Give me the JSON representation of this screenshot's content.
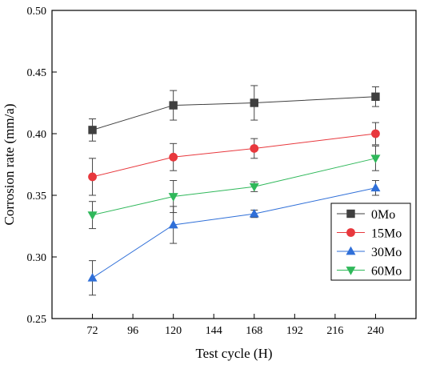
{
  "chart_data": {
    "type": "line",
    "xlabel": "Test cycle (H)",
    "ylabel": "Corrosion rate (mm/a)",
    "xlim": [
      48,
      264
    ],
    "ylim": [
      0.25,
      0.5
    ],
    "xticks": [
      72,
      96,
      120,
      144,
      168,
      192,
      216,
      240
    ],
    "xtick_labels": [
      "72",
      "96",
      "120",
      "144",
      "168",
      "192",
      "216",
      "240"
    ],
    "yticks": [
      0.25,
      0.3,
      0.35,
      0.4,
      0.45,
      0.5
    ],
    "ytick_labels": [
      "0.25",
      "0.30",
      "0.35",
      "0.40",
      "0.45",
      "0.50"
    ],
    "x": [
      72,
      120,
      168,
      240
    ],
    "legend_position": "right",
    "grid": false,
    "series": [
      {
        "name": "0Mo",
        "color": "#3f3f3f",
        "marker": "square",
        "values": [
          0.403,
          0.423,
          0.425,
          0.43
        ],
        "errors": [
          0.009,
          0.012,
          0.014,
          0.008
        ]
      },
      {
        "name": "15Mo",
        "color": "#e8383d",
        "marker": "circle",
        "values": [
          0.365,
          0.381,
          0.388,
          0.4
        ],
        "errors": [
          0.015,
          0.011,
          0.008,
          0.009
        ]
      },
      {
        "name": "30Mo",
        "color": "#2f6fd8",
        "marker": "triangle-up",
        "values": [
          0.283,
          0.326,
          0.335,
          0.356
        ],
        "errors": [
          0.014,
          0.015,
          0.003,
          0.006
        ]
      },
      {
        "name": "60Mo",
        "color": "#2fb85a",
        "marker": "triangle-down",
        "values": [
          0.334,
          0.349,
          0.357,
          0.38
        ],
        "errors": [
          0.011,
          0.013,
          0.004,
          0.01
        ]
      }
    ]
  }
}
